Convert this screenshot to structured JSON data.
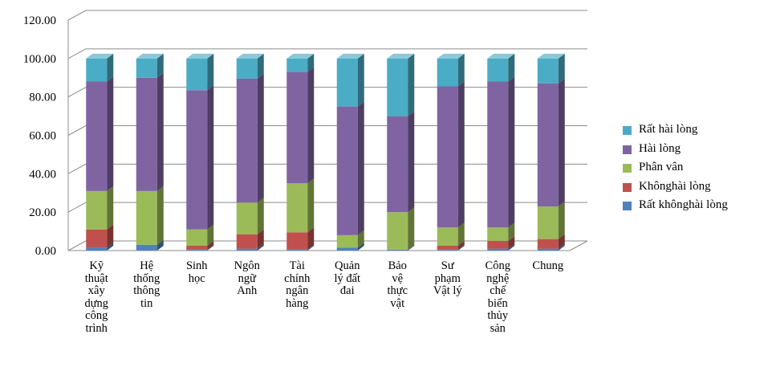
{
  "chart_data": {
    "type": "bar",
    "stacked": true,
    "style": "3d-column",
    "categories": [
      "Kỹ\nthuật\nxây\ndựng\ncông\ntrình",
      "Hệ\nthống\nthông\ntin",
      "Sinh\nhọc",
      "Ngôn\nngữ\nAnh",
      "Tài\nchính\nngân\nhàng",
      "Quản\nlý đất\nđai",
      "Bảo\nvệ\nthực\nvật",
      "Sư\nphạm\nVật lý",
      "Công\nnghệ\nchế\nbiến\nthủy\nsản",
      "Chung"
    ],
    "series": [
      {
        "name": "Rất không hài lòng",
        "color": "#4F81BD",
        "values": [
          1.5,
          3.0,
          0.5,
          1.0,
          0.5,
          1.5,
          0.5,
          0.5,
          1.0,
          1.0
        ]
      },
      {
        "name": "Không hài lòng",
        "color": "#C0504D",
        "values": [
          9.5,
          0.0,
          2.0,
          7.5,
          9.0,
          0.0,
          0.0,
          2.0,
          4.0,
          5.0
        ]
      },
      {
        "name": "Phân vân",
        "color": "#9BBB59",
        "values": [
          20.0,
          28.0,
          8.5,
          16.5,
          25.5,
          6.5,
          19.5,
          9.5,
          7.0,
          17.0
        ]
      },
      {
        "name": "Hài lòng",
        "color": "#8064A2",
        "values": [
          57.0,
          59.0,
          72.5,
          64.5,
          58.0,
          67.0,
          50.0,
          73.5,
          76.0,
          64.0
        ]
      },
      {
        "name": "Rất hài lòng",
        "color": "#4BACC6",
        "values": [
          12.0,
          10.0,
          16.5,
          10.5,
          7.0,
          25.0,
          30.0,
          14.5,
          12.0,
          13.0
        ]
      }
    ],
    "legend_order": [
      "Rất hài lòng",
      "Hài lòng",
      "Phân vân",
      "Không hài lòng",
      "Rất không hài lòng"
    ],
    "legend_labels": {
      "Rất hài lòng": "Rất hài lòng",
      "Hài lòng": "Hài lòng",
      "Phân vân": "Phân vân",
      "Không hài lòng": "Khônghài lòng",
      "Rất không hài lòng": "Rất khônghài lòng"
    },
    "yticks": [
      "0.00",
      "20.00",
      "40.00",
      "60.00",
      "80.00",
      "100.00",
      "120.00"
    ],
    "ylim": [
      0,
      120
    ],
    "grid": true,
    "legend_position": "right",
    "title": "",
    "xlabel": "",
    "ylabel": ""
  }
}
